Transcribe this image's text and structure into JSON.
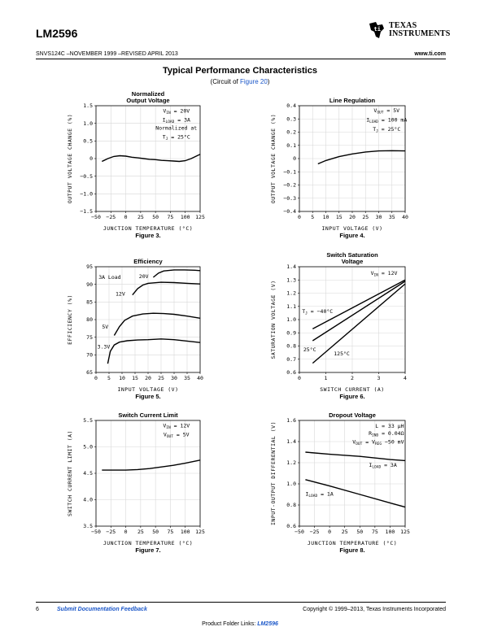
{
  "header": {
    "part_number": "LM2596",
    "doc_info": "SNVS124C –NOVEMBER 1999 –REVISED APRIL 2013",
    "website": "www.ti.com",
    "logo_line1": "TEXAS",
    "logo_line2": "INSTRUMENTS"
  },
  "section": {
    "title": "Typical Performance Characteristics",
    "sub_prefix": "(Circuit of ",
    "sub_link": "Figure 20",
    "sub_suffix": ")"
  },
  "footer": {
    "page_number": "6",
    "feedback_link": "Submit Documentation Feedback",
    "copyright": "Copyright © 1999–2013, Texas Instruments Incorporated",
    "folder_prefix": "Product Folder Links: ",
    "folder_link": "LM2596"
  },
  "chart_data": [
    {
      "id": "fig3",
      "type": "line",
      "title": [
        "Normalized",
        "Output Voltage"
      ],
      "figure": "Figure 3.",
      "xlabel": "JUNCTION TEMPERATURE (°C)",
      "ylabel": "OUTPUT VOLTAGE CHANGE (%)",
      "xlim": [
        -50,
        125
      ],
      "ylim": [
        -1.5,
        1.5
      ],
      "xticks": [
        "−50",
        "−25",
        "0",
        "25",
        "50",
        "75",
        "100",
        "125"
      ],
      "xtick_vals": [
        -50,
        -25,
        0,
        25,
        50,
        75,
        100,
        125
      ],
      "yticks": [
        "1.5",
        "1.0",
        "0.5",
        "0",
        "−0.5",
        "−1.0",
        "−1.5"
      ],
      "ytick_vals": [
        1.5,
        1.0,
        0.5,
        0,
        -0.5,
        -1.0,
        -1.5
      ],
      "annotations": [
        {
          "pre": "V",
          "sub": "IN",
          "post": " = 20V",
          "x": 85,
          "y": 1.3,
          "anchor": "middle"
        },
        {
          "pre": "I",
          "sub": "LOAD",
          "post": " = 3A",
          "x": 85,
          "y": 1.05,
          "anchor": "middle"
        },
        {
          "pre": "Normalized at",
          "sub": "",
          "post": "",
          "x": 85,
          "y": 0.82,
          "anchor": "middle"
        },
        {
          "pre": "T",
          "sub": "J",
          "post": " = 25°C",
          "x": 85,
          "y": 0.57,
          "anchor": "middle"
        }
      ],
      "series": [
        {
          "x": [
            -40,
            -30,
            -20,
            -10,
            0,
            10,
            20,
            30,
            40,
            50,
            60,
            70,
            80,
            90,
            100,
            110,
            120,
            125
          ],
          "y": [
            -0.08,
            0.0,
            0.06,
            0.08,
            0.07,
            0.04,
            0.02,
            0.0,
            -0.02,
            -0.03,
            -0.05,
            -0.06,
            -0.07,
            -0.08,
            -0.06,
            0.0,
            0.08,
            0.12
          ]
        }
      ]
    },
    {
      "id": "fig4",
      "type": "line",
      "title": [
        "Line Regulation"
      ],
      "figure": "Figure 4.",
      "xlabel": "INPUT VOLTAGE (V)",
      "ylabel": "OUTPUT VOLTAGE CHANGE (%)",
      "xlim": [
        0,
        40
      ],
      "ylim": [
        -0.4,
        0.4
      ],
      "xticks": [
        "0",
        "5",
        "10",
        "15",
        "20",
        "25",
        "30",
        "35",
        "40"
      ],
      "xtick_vals": [
        0,
        5,
        10,
        15,
        20,
        25,
        30,
        35,
        40
      ],
      "yticks": [
        "0.4",
        "0.3",
        "0.2",
        "0.1",
        "0",
        "−0.1",
        "−0.2",
        "−0.3",
        "−0.4"
      ],
      "ytick_vals": [
        0.4,
        0.3,
        0.2,
        0.1,
        0,
        -0.1,
        -0.2,
        -0.3,
        -0.4
      ],
      "annotations": [
        {
          "pre": "V",
          "sub": "OUT",
          "post": " = 5V",
          "x": 33,
          "y": 0.35,
          "anchor": "middle"
        },
        {
          "pre": "I",
          "sub": "LOAD",
          "post": " = 100 mA",
          "x": 33,
          "y": 0.28,
          "anchor": "middle"
        },
        {
          "pre": "T",
          "sub": "J",
          "post": " = 25°C",
          "x": 33,
          "y": 0.21,
          "anchor": "middle"
        }
      ],
      "series": [
        {
          "x": [
            7,
            10,
            15,
            20,
            25,
            30,
            35,
            40
          ],
          "y": [
            -0.04,
            -0.015,
            0.015,
            0.035,
            0.05,
            0.058,
            0.06,
            0.058
          ]
        }
      ]
    },
    {
      "id": "fig5",
      "type": "line",
      "title": [
        "Efficiency"
      ],
      "figure": "Figure 5.",
      "xlabel": "INPUT VOLTAGE (V)",
      "ylabel": "EFFICIENCY (%)",
      "xlim": [
        0,
        40
      ],
      "ylim": [
        65,
        95
      ],
      "xticks": [
        "0",
        "5",
        "10",
        "15",
        "20",
        "25",
        "30",
        "35",
        "40"
      ],
      "xtick_vals": [
        0,
        5,
        10,
        15,
        20,
        25,
        30,
        35,
        40
      ],
      "yticks": [
        "95",
        "90",
        "85",
        "80",
        "75",
        "70",
        "65"
      ],
      "ytick_vals": [
        95,
        90,
        85,
        80,
        75,
        70,
        65
      ],
      "annotations": [
        {
          "pre": "3A Load",
          "sub": "",
          "post": "",
          "x": 1,
          "y": 91.5,
          "anchor": "start"
        },
        {
          "pre": "20V",
          "sub": "",
          "post": "",
          "x": 16.5,
          "y": 91.8,
          "anchor": "start"
        },
        {
          "pre": "12V",
          "sub": "",
          "post": "",
          "x": 7.5,
          "y": 86.8,
          "anchor": "start"
        },
        {
          "pre": "5V",
          "sub": "",
          "post": "",
          "x": 2.3,
          "y": 77.5,
          "anchor": "start"
        },
        {
          "pre": "3.3V",
          "sub": "",
          "post": "",
          "x": 0.5,
          "y": 71.8,
          "anchor": "start"
        }
      ],
      "series": [
        {
          "name": "20V",
          "x": [
            22,
            24,
            26,
            30,
            34,
            38,
            40
          ],
          "y": [
            92.0,
            93.2,
            93.8,
            94.1,
            94.1,
            94.0,
            93.9
          ]
        },
        {
          "name": "12V",
          "x": [
            14,
            16,
            18,
            20,
            25,
            30,
            35,
            40
          ],
          "y": [
            87.0,
            88.8,
            89.8,
            90.3,
            90.6,
            90.5,
            90.3,
            90.1
          ]
        },
        {
          "name": "5V",
          "x": [
            7,
            9,
            11,
            14,
            18,
            22,
            26,
            30,
            35,
            40
          ],
          "y": [
            75.5,
            78.0,
            79.8,
            81.0,
            81.6,
            81.8,
            81.7,
            81.5,
            81.0,
            80.4
          ]
        },
        {
          "name": "3.3V",
          "x": [
            4.5,
            5.5,
            7,
            9,
            12,
            16,
            20,
            25,
            30,
            35,
            40
          ],
          "y": [
            67.5,
            71.0,
            72.8,
            73.6,
            74.0,
            74.2,
            74.3,
            74.5,
            74.3,
            73.9,
            73.5
          ]
        }
      ]
    },
    {
      "id": "fig6",
      "type": "line",
      "title": [
        "Switch Saturation",
        "Voltage"
      ],
      "figure": "Figure 6.",
      "xlabel": "SWITCH CURRENT (A)",
      "ylabel": "SATURATION VOLTAGE (V)",
      "xlim": [
        0,
        4
      ],
      "ylim": [
        0.6,
        1.4
      ],
      "xticks": [
        "0",
        "1",
        "2",
        "3",
        "4"
      ],
      "xtick_vals": [
        0,
        1,
        2,
        3,
        4
      ],
      "yticks": [
        "1.4",
        "1.3",
        "1.2",
        "1.1",
        "1.0",
        "0.9",
        "0.8",
        "0.7",
        "0.6"
      ],
      "ytick_vals": [
        1.4,
        1.3,
        1.2,
        1.1,
        1.0,
        0.9,
        0.8,
        0.7,
        0.6
      ],
      "annotations": [
        {
          "pre": "V",
          "sub": "IN",
          "post": " = 12V",
          "x": 3.2,
          "y": 1.34,
          "anchor": "middle"
        },
        {
          "pre": "T",
          "sub": "J",
          "post": " = −40°C",
          "x": 0.1,
          "y": 1.05,
          "anchor": "start"
        },
        {
          "pre": "25°C",
          "sub": "",
          "post": "",
          "x": 0.15,
          "y": 0.76,
          "anchor": "start"
        },
        {
          "pre": "125°C",
          "sub": "",
          "post": "",
          "x": 1.3,
          "y": 0.73,
          "anchor": "start"
        }
      ],
      "series": [
        {
          "name": "-40°C",
          "x": [
            0.5,
            4
          ],
          "y": [
            0.93,
            1.3
          ]
        },
        {
          "name": "25°C",
          "x": [
            0.5,
            4
          ],
          "y": [
            0.84,
            1.29
          ]
        },
        {
          "name": "125°C",
          "x": [
            0.5,
            4
          ],
          "y": [
            0.67,
            1.27
          ]
        }
      ]
    },
    {
      "id": "fig7",
      "type": "line",
      "title": [
        "Switch Current Limit"
      ],
      "figure": "Figure 7.",
      "xlabel": "JUNCTION TEMPERATURE (°C)",
      "ylabel": "SWITCH CURRENT LIMIT (A)",
      "xlim": [
        -50,
        125
      ],
      "ylim": [
        3.5,
        5.5
      ],
      "xticks": [
        "−50",
        "−25",
        "0",
        "25",
        "50",
        "75",
        "100",
        "125"
      ],
      "xtick_vals": [
        -50,
        -25,
        0,
        25,
        50,
        75,
        100,
        125
      ],
      "yticks": [
        "5.5",
        "5.0",
        "4.5",
        "4.0",
        "3.5"
      ],
      "ytick_vals": [
        5.5,
        5.0,
        4.5,
        4.0,
        3.5
      ],
      "annotations": [
        {
          "pre": "V",
          "sub": "IN",
          "post": " = 12V",
          "x": 85,
          "y": 5.37,
          "anchor": "middle"
        },
        {
          "pre": "V",
          "sub": "OUT",
          "post": " = 5V",
          "x": 85,
          "y": 5.2,
          "anchor": "middle"
        }
      ],
      "series": [
        {
          "x": [
            -40,
            -20,
            0,
            20,
            40,
            60,
            80,
            100,
            125
          ],
          "y": [
            4.56,
            4.56,
            4.56,
            4.57,
            4.59,
            4.62,
            4.65,
            4.69,
            4.75
          ]
        }
      ]
    },
    {
      "id": "fig8",
      "type": "line",
      "title": [
        "Dropout Voltage"
      ],
      "figure": "Figure 8.",
      "xlabel": "JUNCTION TEMPERATURE (°C)",
      "ylabel": "INPUT-OUTPUT DIFFERENTIAL (V)",
      "xlim": [
        -50,
        125
      ],
      "ylim": [
        0.6,
        1.6
      ],
      "xticks": [
        "−50",
        "−25",
        "0",
        "25",
        "50",
        "75",
        "100",
        "125"
      ],
      "xtick_vals": [
        -50,
        -25,
        0,
        25,
        50,
        75,
        100,
        125
      ],
      "yticks": [
        "1.6",
        "1.4",
        "1.2",
        "1.0",
        "0.8",
        "0.6"
      ],
      "ytick_vals": [
        1.6,
        1.4,
        1.2,
        1.0,
        0.8,
        0.6
      ],
      "annotations": [
        {
          "pre": "L = 33 μH",
          "sub": "",
          "post": "",
          "x": 123,
          "y": 1.53,
          "anchor": "end"
        },
        {
          "pre": "R",
          "sub": "IND",
          "post": " = 0.04Ω",
          "x": 123,
          "y": 1.46,
          "anchor": "end"
        },
        {
          "pre": "V",
          "sub": "OUT",
          "post": " = V",
          "sub2": "REG",
          "post2": " −50 mV",
          "x": 123,
          "y": 1.38,
          "anchor": "end"
        },
        {
          "pre": "I",
          "sub": "LOAD",
          "post": " = 3A",
          "x": 65,
          "y": 1.16,
          "anchor": "start"
        },
        {
          "pre": "I",
          "sub": "LOAD",
          "post": " = 1A",
          "x": -40,
          "y": 0.89,
          "anchor": "start"
        }
      ],
      "series": [
        {
          "name": "3A",
          "x": [
            -40,
            0,
            50,
            100,
            125
          ],
          "y": [
            1.3,
            1.28,
            1.26,
            1.23,
            1.22
          ]
        },
        {
          "name": "1A",
          "x": [
            -40,
            0,
            50,
            100,
            125
          ],
          "y": [
            1.04,
            0.98,
            0.9,
            0.82,
            0.78
          ]
        }
      ]
    }
  ]
}
